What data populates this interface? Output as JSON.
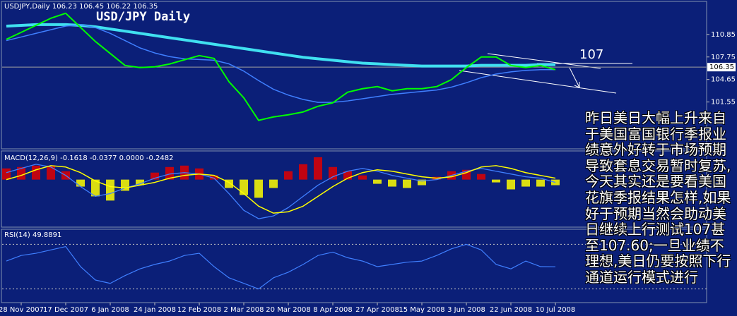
{
  "chart_data": [
    {
      "type": "line",
      "header": "USDJPY,Daily  106.23 106.45 106.22 106.35",
      "title": "USD/JPY Daily",
      "annotation": "107",
      "note": "昨日美日大幅上升来自于美国富国银行季报业绩意外好转于市场预期导致套息交易暂时复苏,今天其实还是要看美国花旗季报结果怎样,如果好于预期当然会助动美日继续上行测试107甚至107.60;一旦业绩不理想,美日仍要按照下行通道运行模式进行",
      "categories": [
        null,
        "28 Nov 2007",
        null,
        null,
        "17 Dec 2007",
        null,
        null,
        "6 Jan 2008",
        null,
        null,
        "24 Jan 2008",
        null,
        null,
        "12 Feb 2008",
        null,
        null,
        "2 Mar 2008",
        null,
        null,
        "20 Mar 2008",
        null,
        null,
        "8 Apr 2008",
        null,
        null,
        "27 Apr 2008",
        null,
        null,
        "15 May 2008",
        null,
        null,
        "3 Jun 2008",
        null,
        null,
        "22 Jun 2008",
        null,
        null,
        "10 Jul 2008"
      ],
      "series": [
        {
          "color": "#40e0f0",
          "values": [
            112.0,
            112.1,
            112.2,
            112.2,
            112.2,
            112.1,
            111.9,
            111.6,
            111.3,
            111.0,
            110.7,
            110.4,
            110.1,
            109.8,
            109.5,
            109.2,
            108.9,
            108.6,
            108.3,
            108.0,
            107.7,
            107.5,
            107.3,
            107.1,
            106.9,
            106.8,
            106.7,
            106.6,
            106.5,
            106.5,
            106.5,
            106.5,
            106.6,
            106.6,
            106.6,
            106.6,
            106.7,
            106.7
          ]
        },
        {
          "color": "#3f7fff",
          "values": [
            110.0,
            110.5,
            111.0,
            111.5,
            112.0,
            112.2,
            111.8,
            111.0,
            110.0,
            109.0,
            108.3,
            107.8,
            107.5,
            107.4,
            107.3,
            106.8,
            105.8,
            104.5,
            103.3,
            102.5,
            101.9,
            101.5,
            101.5,
            101.7,
            102.0,
            102.3,
            102.6,
            102.8,
            103.0,
            103.2,
            103.6,
            104.2,
            104.9,
            105.4,
            105.7,
            105.9,
            106.0,
            106.0
          ]
        },
        {
          "color": "#00ff00",
          "values": [
            110.17,
            111.14,
            112.11,
            113.08,
            113.76,
            111.82,
            109.88,
            108.23,
            106.58,
            106.29,
            106.39,
            106.78,
            107.36,
            107.94,
            107.55,
            104.35,
            102.12,
            99.02,
            99.5,
            99.79,
            100.18,
            100.96,
            101.44,
            102.9,
            103.38,
            103.67,
            103.09,
            103.38,
            103.38,
            103.67,
            104.64,
            106.29,
            107.75,
            107.75,
            106.58,
            106.29,
            106.58,
            106.0
          ]
        }
      ],
      "last_price": 106.35,
      "ylim": [
        95.2,
        115.3
      ],
      "yticks": [
        110.85,
        107.75,
        104.65,
        101.55
      ]
    },
    {
      "type": "bar",
      "header": "MACD(12,26,9) -0.1618 -0.0377 0.0000 -0.2482",
      "color_up": "#e00000",
      "color_down": "#ffff00",
      "values": [
        0.8,
        0.9,
        1.0,
        1.0,
        0.6,
        -0.5,
        -1.2,
        -1.5,
        -0.8,
        -0.4,
        0.5,
        0.9,
        1.0,
        0.8,
        0.3,
        -0.6,
        -1.1,
        -1.3,
        -0.6,
        0.6,
        1.1,
        1.6,
        0.9,
        0.6,
        0.3,
        -0.3,
        -0.5,
        -0.6,
        -0.4,
        0.2,
        0.6,
        0.7,
        0.4,
        -0.2,
        -0.7,
        -0.5,
        -0.5,
        -0.4
      ],
      "series": [
        {
          "color": "#3f7fff",
          "values": [
            0.5,
            0.8,
            1.1,
            0.9,
            0.3,
            -0.5,
            -1.2,
            -1.0,
            -0.6,
            -0.3,
            0.1,
            0.4,
            0.5,
            0.4,
            0.1,
            -1.0,
            -2.2,
            -2.8,
            -2.6,
            -2.0,
            -1.2,
            -0.4,
            0.2,
            0.6,
            0.8,
            0.6,
            0.3,
            0.1,
            -0.1,
            0.0,
            0.3,
            0.6,
            0.8,
            0.6,
            0.4,
            0.2,
            0.1,
            -0.2
          ]
        },
        {
          "color": "#ffff00",
          "values": [
            0.0,
            0.3,
            0.7,
            1.0,
            0.9,
            0.5,
            -0.1,
            -0.5,
            -0.6,
            -0.4,
            -0.2,
            0.1,
            0.3,
            0.4,
            0.3,
            -0.2,
            -1.0,
            -1.9,
            -2.4,
            -2.3,
            -1.9,
            -1.2,
            -0.5,
            0.1,
            0.5,
            0.7,
            0.6,
            0.4,
            0.2,
            0.1,
            0.2,
            0.5,
            0.9,
            1.0,
            0.8,
            0.5,
            0.3,
            0.1
          ]
        }
      ],
      "ylim": [
        -3.35,
        2.0
      ]
    },
    {
      "type": "line",
      "header": "RSI(14) 49.8891",
      "series": [
        {
          "color": "#3f7fff",
          "values": [
            55,
            60,
            62,
            65,
            68,
            50,
            38,
            35,
            42,
            48,
            52,
            55,
            60,
            62,
            50,
            40,
            35,
            30,
            40,
            45,
            52,
            60,
            63,
            58,
            55,
            50,
            52,
            54,
            55,
            60,
            66,
            70,
            65,
            52,
            48,
            55,
            50,
            49.8891
          ]
        }
      ],
      "levels": [
        70,
        30
      ],
      "ylim": [
        18.4,
        82.9
      ]
    }
  ]
}
